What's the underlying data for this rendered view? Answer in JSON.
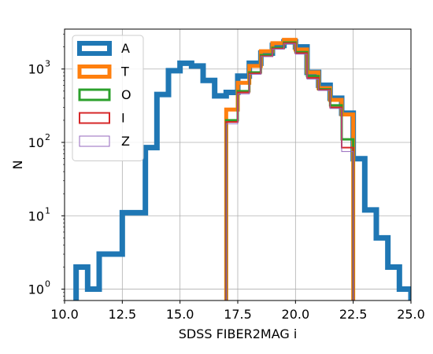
{
  "chart_data": {
    "type": "histogram",
    "xlabel": "SDSS FIBER2MAG i",
    "ylabel": "N",
    "xlim": [
      10.0,
      25.0
    ],
    "ylim": [
      0.7,
      3500
    ],
    "yscale": "log",
    "grid": true,
    "legend_position": "top-left",
    "xticks": [
      10.0,
      12.5,
      15.0,
      17.5,
      20.0,
      22.5,
      25.0
    ],
    "xtick_labels": [
      "10.0",
      "12.5",
      "15.0",
      "17.5",
      "20.0",
      "22.5",
      "25.0"
    ],
    "yticks": [
      1,
      10,
      100,
      1000
    ],
    "ytick_labels": [
      {
        "base": "10",
        "exp": "0"
      },
      {
        "base": "10",
        "exp": "1"
      },
      {
        "base": "10",
        "exp": "2"
      },
      {
        "base": "10",
        "exp": "3"
      }
    ],
    "series": [
      {
        "name": "A",
        "color": "#1f77b4",
        "width": 7,
        "legend_width": 6,
        "edges": [
          10.5,
          11.0,
          11.5,
          12.0,
          12.5,
          13.0,
          13.5,
          14.0,
          14.5,
          15.0,
          15.5,
          16.0,
          16.5,
          17.0,
          17.5,
          18.0,
          18.5,
          19.0,
          19.5,
          20.0,
          20.5,
          21.0,
          21.5,
          22.0,
          22.5,
          23.0,
          23.5,
          24.0,
          24.5,
          25.0
        ],
        "counts": [
          2,
          1,
          3,
          3,
          11,
          11,
          85,
          450,
          950,
          1200,
          1100,
          700,
          430,
          480,
          800,
          1200,
          1650,
          2100,
          2350,
          2000,
          900,
          600,
          400,
          250,
          60,
          12,
          5,
          2,
          1
        ]
      },
      {
        "name": "T",
        "color": "#ff7f0e",
        "width": 5,
        "legend_width": 5,
        "edges": [
          17.0,
          17.5,
          18.0,
          18.5,
          19.0,
          19.5,
          20.0,
          20.5,
          21.0,
          21.5,
          22.0,
          22.5
        ],
        "counts": [
          280,
          650,
          1100,
          1750,
          2250,
          2500,
          1850,
          900,
          550,
          380,
          240
        ]
      },
      {
        "name": "O",
        "color": "#2ca02c",
        "width": 3,
        "legend_width": 3,
        "edges": [
          17.0,
          17.5,
          18.0,
          18.5,
          19.0,
          19.5,
          20.0,
          20.5,
          21.0,
          21.5,
          22.0,
          22.5
        ],
        "counts": [
          200,
          500,
          900,
          1550,
          1950,
          2300,
          1700,
          800,
          530,
          320,
          110
        ]
      },
      {
        "name": "I",
        "color": "#d62728",
        "width": 2,
        "legend_width": 2,
        "edges": [
          17.0,
          17.5,
          18.0,
          18.5,
          19.0,
          19.5,
          20.0,
          20.5,
          21.0,
          21.5,
          22.0,
          22.5
        ],
        "counts": [
          190,
          480,
          870,
          1500,
          1900,
          2250,
          1650,
          760,
          520,
          300,
          85
        ]
      },
      {
        "name": "Z",
        "color": "#9467bd",
        "width": 1,
        "legend_width": 1,
        "edges": [
          17.0,
          17.5,
          18.0,
          18.5,
          19.0,
          19.5,
          20.0,
          20.5,
          21.0,
          21.5,
          22.0,
          22.5
        ],
        "counts": [
          180,
          460,
          850,
          1480,
          1870,
          2200,
          1600,
          730,
          510,
          290,
          75
        ]
      }
    ]
  }
}
